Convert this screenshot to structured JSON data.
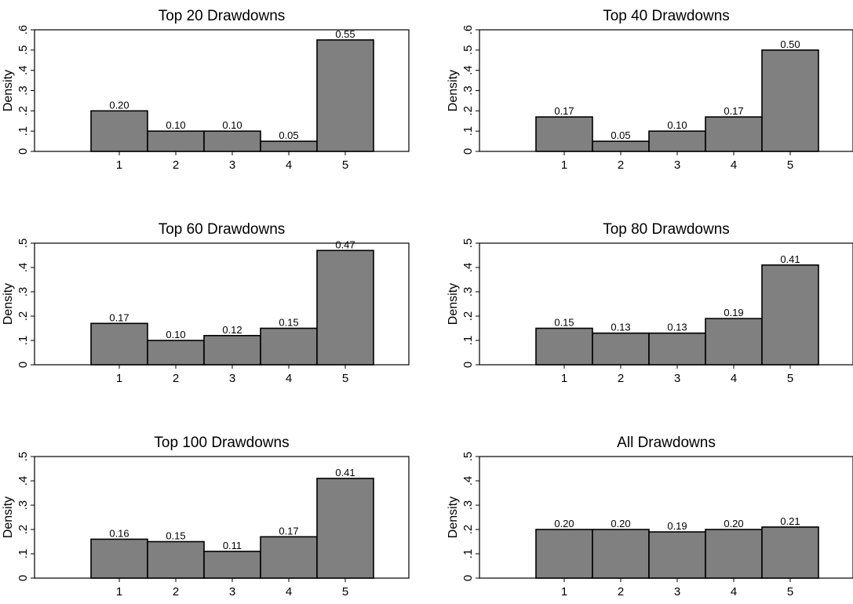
{
  "chart_data": [
    {
      "type": "bar",
      "title": "Top 20 Drawdowns",
      "ylabel": "Density",
      "categories": [
        "1",
        "2",
        "3",
        "4",
        "5"
      ],
      "values": [
        0.2,
        0.1,
        0.1,
        0.05,
        0.55
      ],
      "value_labels": [
        "0.20",
        "0.10",
        "0.10",
        "0.05",
        "0.55"
      ],
      "yticks": [
        0,
        0.1,
        0.2,
        0.3,
        0.4,
        0.5,
        0.6
      ],
      "ytick_labels": [
        "0",
        ".1",
        ".2",
        ".3",
        ".4",
        ".5",
        ".6"
      ],
      "ylim": [
        0,
        0.6
      ],
      "bar_color": "#808080",
      "grid": false
    },
    {
      "type": "bar",
      "title": "Top 40 Drawdowns",
      "ylabel": "Density",
      "categories": [
        "1",
        "2",
        "3",
        "4",
        "5"
      ],
      "values": [
        0.17,
        0.05,
        0.1,
        0.17,
        0.5
      ],
      "value_labels": [
        "0.17",
        "0.05",
        "0.10",
        "0.17",
        "0.50"
      ],
      "yticks": [
        0,
        0.1,
        0.2,
        0.3,
        0.4,
        0.5,
        0.6
      ],
      "ytick_labels": [
        "0",
        ".1",
        ".2",
        ".3",
        ".4",
        ".5",
        ".6"
      ],
      "ylim": [
        0,
        0.6
      ],
      "bar_color": "#808080",
      "grid": false
    },
    {
      "type": "bar",
      "title": "Top 60 Drawdowns",
      "ylabel": "Density",
      "categories": [
        "1",
        "2",
        "3",
        "4",
        "5"
      ],
      "values": [
        0.17,
        0.1,
        0.12,
        0.15,
        0.47
      ],
      "value_labels": [
        "0.17",
        "0.10",
        "0.12",
        "0.15",
        "0.47"
      ],
      "yticks": [
        0,
        0.1,
        0.2,
        0.3,
        0.4,
        0.5
      ],
      "ytick_labels": [
        "0",
        ".1",
        ".2",
        ".3",
        ".4",
        ".5"
      ],
      "ylim": [
        0,
        0.5
      ],
      "bar_color": "#808080",
      "grid": false
    },
    {
      "type": "bar",
      "title": "Top 80 Drawdowns",
      "ylabel": "Density",
      "categories": [
        "1",
        "2",
        "3",
        "4",
        "5"
      ],
      "values": [
        0.15,
        0.13,
        0.13,
        0.19,
        0.41
      ],
      "value_labels": [
        "0.15",
        "0.13",
        "0.13",
        "0.19",
        "0.41"
      ],
      "yticks": [
        0,
        0.1,
        0.2,
        0.3,
        0.4,
        0.5
      ],
      "ytick_labels": [
        "0",
        ".1",
        ".2",
        ".3",
        ".4",
        ".5"
      ],
      "ylim": [
        0,
        0.5
      ],
      "bar_color": "#808080",
      "grid": false
    },
    {
      "type": "bar",
      "title": "Top 100 Drawdowns",
      "ylabel": "Density",
      "categories": [
        "1",
        "2",
        "3",
        "4",
        "5"
      ],
      "values": [
        0.16,
        0.15,
        0.11,
        0.17,
        0.41
      ],
      "value_labels": [
        "0.16",
        "0.15",
        "0.11",
        "0.17",
        "0.41"
      ],
      "yticks": [
        0,
        0.1,
        0.2,
        0.3,
        0.4,
        0.5
      ],
      "ytick_labels": [
        "0",
        ".1",
        ".2",
        ".3",
        ".4",
        ".5"
      ],
      "ylim": [
        0,
        0.5
      ],
      "bar_color": "#808080",
      "grid": false
    },
    {
      "type": "bar",
      "title": "All Drawdowns",
      "ylabel": "Density",
      "categories": [
        "1",
        "2",
        "3",
        "4",
        "5"
      ],
      "values": [
        0.2,
        0.2,
        0.19,
        0.2,
        0.21
      ],
      "value_labels": [
        "0.20",
        "0.20",
        "0.19",
        "0.20",
        "0.21"
      ],
      "yticks": [
        0,
        0.1,
        0.2,
        0.3,
        0.4,
        0.5
      ],
      "ytick_labels": [
        "0",
        ".1",
        ".2",
        ".3",
        ".4",
        ".5"
      ],
      "ylim": [
        0,
        0.5
      ],
      "bar_color": "#808080",
      "grid": false
    }
  ]
}
